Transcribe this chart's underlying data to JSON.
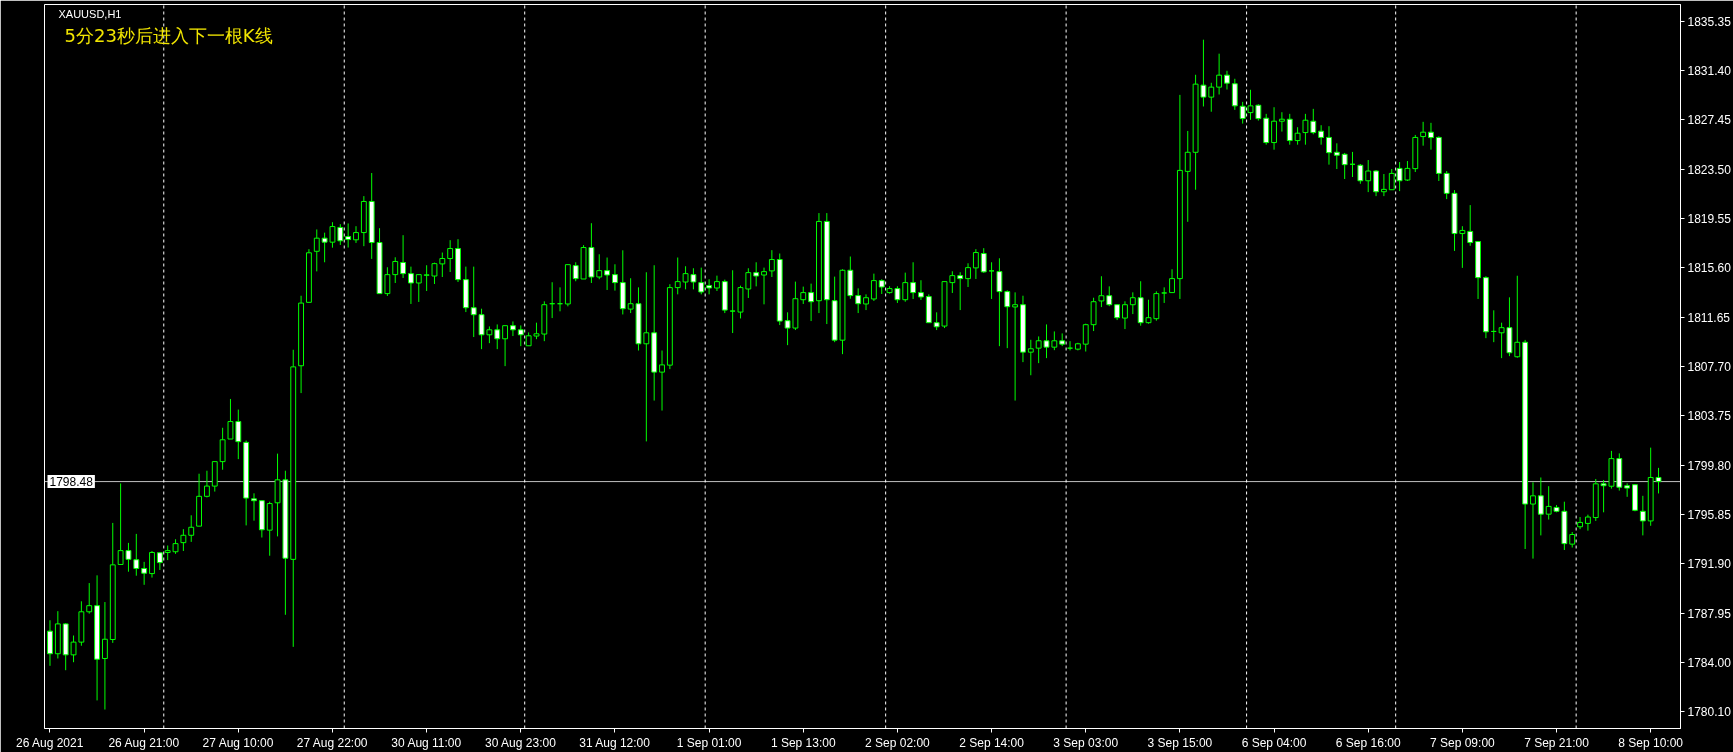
{
  "chart_data": {
    "type": "candlestick",
    "title": "XAUUSD,H1",
    "annotations": [
      "5分23秒后进入下一根K线"
    ],
    "color": "#00ff00",
    "categories": [
      "26 Aug 2021",
      null,
      null,
      null,
      null,
      null,
      null,
      null,
      null,
      null,
      null,
      null,
      "26 Aug 21:00",
      null,
      null,
      null,
      null,
      null,
      null,
      null,
      null,
      null,
      null,
      null,
      "27 Aug 10:00",
      null,
      null,
      null,
      null,
      null,
      null,
      null,
      null,
      null,
      null,
      null,
      "27 Aug 22:00",
      null,
      null,
      null,
      null,
      null,
      null,
      null,
      null,
      null,
      null,
      null,
      "30 Aug 11:00",
      null,
      null,
      null,
      null,
      null,
      null,
      null,
      null,
      null,
      null,
      null,
      "30 Aug 23:00",
      null,
      null,
      null,
      null,
      null,
      null,
      null,
      null,
      null,
      null,
      null,
      "31 Aug 12:00",
      null,
      null,
      null,
      null,
      null,
      null,
      null,
      null,
      null,
      null,
      null,
      "1 Sep 01:00",
      null,
      null,
      null,
      null,
      null,
      null,
      null,
      null,
      null,
      null,
      null,
      "1 Sep 13:00",
      null,
      null,
      null,
      null,
      null,
      null,
      null,
      null,
      null,
      null,
      null,
      "2 Sep 02:00",
      null,
      null,
      null,
      null,
      null,
      null,
      null,
      null,
      null,
      null,
      null,
      "2 Sep 14:00",
      null,
      null,
      null,
      null,
      null,
      null,
      null,
      null,
      null,
      null,
      null,
      "3 Sep 03:00",
      null,
      null,
      null,
      null,
      null,
      null,
      null,
      null,
      null,
      null,
      null,
      "3 Sep 15:00",
      null,
      null,
      null,
      null,
      null,
      null,
      null,
      null,
      null,
      null,
      null,
      "6 Sep 04:00",
      null,
      null,
      null,
      null,
      null,
      null,
      null,
      null,
      null,
      null,
      null,
      "6 Sep 16:00",
      null,
      null,
      null,
      null,
      null,
      null,
      null,
      null,
      null,
      null,
      null,
      "7 Sep 09:00",
      null,
      null,
      null,
      null,
      null,
      null,
      null,
      null,
      null,
      null,
      null,
      "7 Sep 21:00",
      null,
      null,
      null,
      null,
      null,
      null,
      null,
      null,
      null,
      null,
      null,
      "8 Sep 10:00",
      null
    ],
    "ohlc": [
      [
        1786.5,
        1787.37,
        1783.72,
        1784.69
      ],
      [
        1784.69,
        1788.1,
        1784.31,
        1787.08
      ],
      [
        1787.08,
        1787.14,
        1783.37,
        1784.6
      ],
      [
        1784.6,
        1786.15,
        1784.01,
        1785.62
      ],
      [
        1785.62,
        1788.89,
        1785.33,
        1788.05
      ],
      [
        1788.05,
        1790.35,
        1787.9,
        1788.54
      ],
      [
        1788.54,
        1790.97,
        1780.95,
        1784.25
      ],
      [
        1784.31,
        1788.83,
        1780.22,
        1785.85
      ],
      [
        1785.83,
        1795.17,
        1785.56,
        1791.81
      ],
      [
        1791.84,
        1798.33,
        1791.84,
        1792.95
      ],
      [
        1792.95,
        1793.57,
        1791.26,
        1792.25
      ],
      [
        1792.22,
        1794.29,
        1790.94,
        1791.52
      ],
      [
        1791.52,
        1792.05,
        1790.21,
        1791.14
      ],
      [
        1791.11,
        1792.92,
        1790.79,
        1792.8
      ],
      [
        1792.78,
        1792.8,
        1791.4,
        1791.99
      ],
      [
        1792.8,
        1793.36,
        1792.19,
        1792.95
      ],
      [
        1792.86,
        1793.86,
        1792.69,
        1793.51
      ],
      [
        1793.59,
        1794.67,
        1792.92,
        1794.18
      ],
      [
        1794.18,
        1795.78,
        1793.65,
        1794.82
      ],
      [
        1794.91,
        1799.11,
        1794.91,
        1797.3
      ],
      [
        1797.3,
        1799.35,
        1797.21,
        1798.12
      ],
      [
        1798.12,
        1800.08,
        1797.68,
        1800.08
      ],
      [
        1800.08,
        1802.79,
        1799.43,
        1801.83
      ],
      [
        1801.89,
        1805.1,
        1801.89,
        1803.29
      ],
      [
        1803.29,
        1804.25,
        1800.28,
        1801.68
      ],
      [
        1801.62,
        1801.77,
        1794.97,
        1797.16
      ],
      [
        1797.1,
        1797.54,
        1795.35,
        1796.95
      ],
      [
        1796.95,
        1796.95,
        1794.0,
        1794.62
      ],
      [
        1794.59,
        1796.87,
        1792.54,
        1796.72
      ],
      [
        1796.78,
        1800.72,
        1794.09,
        1798.62
      ],
      [
        1798.62,
        1799.35,
        1787.81,
        1792.34
      ],
      [
        1792.25,
        1809.04,
        1785.24,
        1807.67
      ],
      [
        1807.76,
        1813.37,
        1805.57,
        1812.78
      ],
      [
        1812.84,
        1817.1,
        1812.84,
        1816.81
      ],
      [
        1816.93,
        1818.68,
        1815.32,
        1817.98
      ],
      [
        1817.98,
        1818.42,
        1816.05,
        1817.66
      ],
      [
        1817.66,
        1819.26,
        1817.22,
        1818.91
      ],
      [
        1818.84,
        1819.1,
        1817.44,
        1817.77
      ],
      [
        1818.11,
        1819.16,
        1817.23,
        1817.87
      ],
      [
        1817.85,
        1818.94,
        1817.6,
        1818.43
      ],
      [
        1818.43,
        1821.35,
        1817.34,
        1820.92
      ],
      [
        1820.92,
        1823.2,
        1816.32,
        1817.63
      ],
      [
        1817.63,
        1818.78,
        1813.54,
        1813.54
      ],
      [
        1813.54,
        1815.65,
        1813.35,
        1815.06
      ],
      [
        1815.06,
        1816.45,
        1814.39,
        1816.11
      ],
      [
        1816.03,
        1818.22,
        1814.79,
        1815.14
      ],
      [
        1815.14,
        1815.7,
        1812.71,
        1814.39
      ],
      [
        1814.39,
        1815.06,
        1812.87,
        1815.06
      ],
      [
        1815.01,
        1815.81,
        1813.75,
        1815.04
      ],
      [
        1814.95,
        1816.02,
        1814.31,
        1815.94
      ],
      [
        1815.92,
        1816.83,
        1814.87,
        1816.35
      ],
      [
        1816.35,
        1817.82,
        1815.27,
        1817.15
      ],
      [
        1817.15,
        1817.9,
        1814.47,
        1814.66
      ],
      [
        1814.66,
        1815.7,
        1812.06,
        1812.41
      ],
      [
        1812.41,
        1815.7,
        1810.06,
        1811.85
      ],
      [
        1811.85,
        1812.33,
        1809.09,
        1810.24
      ],
      [
        1810.24,
        1810.91,
        1809.57,
        1810.64
      ],
      [
        1810.64,
        1811.07,
        1809.09,
        1809.92
      ],
      [
        1809.92,
        1810.97,
        1807.73,
        1810.97
      ],
      [
        1810.97,
        1811.31,
        1810.14,
        1810.64
      ],
      [
        1810.64,
        1810.99,
        1809.33,
        1810.24
      ],
      [
        1809.36,
        1810.43,
        1809.36,
        1810.16
      ],
      [
        1810.14,
        1811.21,
        1809.89,
        1810.32
      ],
      [
        1810.3,
        1812.92,
        1809.73,
        1812.65
      ],
      [
        1812.73,
        1814.45,
        1811.58,
        1812.73
      ],
      [
        1812.73,
        1814.04,
        1812.12,
        1812.73
      ],
      [
        1812.71,
        1815.86,
        1812.52,
        1815.86
      ],
      [
        1815.78,
        1816.05,
        1814.53,
        1814.74
      ],
      [
        1814.71,
        1817.42,
        1814.71,
        1817.23
      ],
      [
        1817.23,
        1819.18,
        1814.39,
        1814.87
      ],
      [
        1814.87,
        1816.69,
        1814.69,
        1815.38
      ],
      [
        1815.38,
        1816.43,
        1813.83,
        1815.03
      ],
      [
        1815.06,
        1815.89,
        1813.78,
        1814.42
      ],
      [
        1814.42,
        1817.01,
        1811.87,
        1812.33
      ],
      [
        1812.3,
        1814.77,
        1811.98,
        1812.73
      ],
      [
        1812.73,
        1814.04,
        1808.98,
        1809.52
      ],
      [
        1809.52,
        1815.25,
        1801.7,
        1810.4
      ],
      [
        1810.4,
        1815.81,
        1804.97,
        1807.25
      ],
      [
        1807.25,
        1808.98,
        1804.17,
        1807.83
      ],
      [
        1807.81,
        1814.29,
        1807.49,
        1814.02
      ],
      [
        1814.02,
        1816.43,
        1813.48,
        1814.5
      ],
      [
        1814.47,
        1815.73,
        1813.88,
        1815.14
      ],
      [
        1815.06,
        1815.57,
        1813.88,
        1814.47
      ],
      [
        1814.42,
        1815.62,
        1813.48,
        1813.67
      ],
      [
        1814.18,
        1814.69,
        1813.48,
        1813.99
      ],
      [
        1813.99,
        1814.98,
        1813.75,
        1814.5
      ],
      [
        1814.5,
        1814.66,
        1811.98,
        1812.22
      ],
      [
        1812.14,
        1815.41,
        1810.38,
        1812.14
      ],
      [
        1812.06,
        1814.18,
        1811.55,
        1814.02
      ],
      [
        1813.91,
        1815.57,
        1813.19,
        1815.22
      ],
      [
        1815.22,
        1816.05,
        1814.12,
        1814.95
      ],
      [
        1815.03,
        1815.62,
        1812.68,
        1815.3
      ],
      [
        1815.36,
        1817.02,
        1814.87,
        1816.27
      ],
      [
        1816.27,
        1816.75,
        1811.02,
        1811.34
      ],
      [
        1811.37,
        1812.04,
        1809.41,
        1810.78
      ],
      [
        1810.78,
        1814.5,
        1810.62,
        1813.13
      ],
      [
        1813.05,
        1814.1,
        1812.71,
        1813.62
      ],
      [
        1813.62,
        1814.34,
        1811.34,
        1812.89
      ],
      [
        1812.97,
        1819.99,
        1811.98,
        1819.32
      ],
      [
        1819.32,
        1819.99,
        1811.1,
        1813.05
      ],
      [
        1812.97,
        1814.9,
        1809.65,
        1809.81
      ],
      [
        1809.81,
        1815.49,
        1808.69,
        1815.41
      ],
      [
        1815.41,
        1816.51,
        1813.13,
        1813.38
      ],
      [
        1813.38,
        1813.96,
        1811.98,
        1812.73
      ],
      [
        1812.71,
        1813.48,
        1812.22,
        1813.21
      ],
      [
        1813.11,
        1815.14,
        1812.95,
        1814.58
      ],
      [
        1814.58,
        1814.69,
        1813.51,
        1814.07
      ],
      [
        1813.62,
        1814.13,
        1813.54,
        1813.94
      ],
      [
        1813.94,
        1814.13,
        1812.79,
        1813.05
      ],
      [
        1813.05,
        1815.22,
        1812.89,
        1814.42
      ],
      [
        1814.42,
        1816.05,
        1813.11,
        1813.62
      ],
      [
        1813.62,
        1814.61,
        1813.03,
        1813.27
      ],
      [
        1813.3,
        1813.48,
        1811.21,
        1811.21
      ],
      [
        1811.21,
        1812.04,
        1810.62,
        1810.88
      ],
      [
        1810.94,
        1814.5,
        1810.78,
        1814.5
      ],
      [
        1814.42,
        1815.33,
        1813.59,
        1814.98
      ],
      [
        1814.98,
        1815.25,
        1812.22,
        1814.74
      ],
      [
        1814.74,
        1815.97,
        1814.07,
        1815.62
      ],
      [
        1815.6,
        1817.1,
        1814.71,
        1816.83
      ],
      [
        1816.75,
        1817.18,
        1815.2,
        1815.28
      ],
      [
        1815.36,
        1816.05,
        1813.11,
        1815.36
      ],
      [
        1815.3,
        1816.37,
        1809.33,
        1813.7
      ],
      [
        1813.7,
        1813.8,
        1809.17,
        1812.49
      ],
      [
        1812.47,
        1813.64,
        1804.97,
        1812.65
      ],
      [
        1812.65,
        1813.37,
        1808.05,
        1808.85
      ],
      [
        1808.85,
        1809.84,
        1807.0,
        1809.12
      ],
      [
        1809.17,
        1810.11,
        1807.97,
        1809.76
      ],
      [
        1809.76,
        1811.07,
        1808.37,
        1809.25
      ],
      [
        1809.25,
        1810.51,
        1809.01,
        1809.76
      ],
      [
        1809.76,
        1810.35,
        1809.33,
        1809.49
      ],
      [
        1809.17,
        1809.73,
        1808.99,
        1809.17
      ],
      [
        1809.09,
        1809.6,
        1808.99,
        1809.52
      ],
      [
        1809.49,
        1811.13,
        1808.9,
        1811.05
      ],
      [
        1811.05,
        1813.21,
        1810.54,
        1812.89
      ],
      [
        1812.95,
        1814.93,
        1812.46,
        1813.37
      ],
      [
        1813.37,
        1814.12,
        1812.53,
        1812.65
      ],
      [
        1812.65,
        1812.65,
        1811.42,
        1811.61
      ],
      [
        1811.58,
        1812.92,
        1810.7,
        1812.65
      ],
      [
        1812.65,
        1813.64,
        1811.9,
        1813.21
      ],
      [
        1813.21,
        1814.53,
        1810.97,
        1811.21
      ],
      [
        1811.21,
        1813.05,
        1811.13,
        1811.61
      ],
      [
        1811.53,
        1813.72,
        1811.37,
        1813.54
      ],
      [
        1813.59,
        1814.04,
        1812.79,
        1813.59
      ],
      [
        1813.62,
        1815.49,
        1813.62,
        1814.74
      ],
      [
        1814.74,
        1829.46,
        1813.11,
        1823.41
      ],
      [
        1823.33,
        1826.57,
        1819.29,
        1824.86
      ],
      [
        1824.86,
        1831.07,
        1821.86,
        1830.32
      ],
      [
        1830.24,
        1833.88,
        1828.53,
        1829.28
      ],
      [
        1829.28,
        1830.43,
        1828.11,
        1830.08
      ],
      [
        1830.08,
        1832.76,
        1829.49,
        1831.04
      ],
      [
        1831.04,
        1831.39,
        1829.89,
        1830.4
      ],
      [
        1830.35,
        1830.75,
        1828.26,
        1828.58
      ],
      [
        1828.55,
        1828.9,
        1827.16,
        1827.56
      ],
      [
        1828.04,
        1829.87,
        1827.46,
        1828.58
      ],
      [
        1828.63,
        1828.71,
        1827.4,
        1827.56
      ],
      [
        1827.59,
        1827.94,
        1825.47,
        1825.64
      ],
      [
        1825.64,
        1828.47,
        1825.07,
        1827.35
      ],
      [
        1827.35,
        1828.07,
        1826.52,
        1827.51
      ],
      [
        1827.51,
        1827.94,
        1825.47,
        1825.8
      ],
      [
        1825.8,
        1826.87,
        1825.47,
        1826.39
      ],
      [
        1826.44,
        1827.94,
        1825.47,
        1827.43
      ],
      [
        1827.35,
        1828.34,
        1826.3,
        1826.44
      ],
      [
        1826.55,
        1827.03,
        1825.47,
        1826.05
      ],
      [
        1826.05,
        1826.95,
        1823.87,
        1824.83
      ],
      [
        1824.86,
        1825.58,
        1823.52,
        1824.62
      ],
      [
        1824.7,
        1824.81,
        1822.72,
        1823.87
      ],
      [
        1823.9,
        1824.89,
        1822.88,
        1823.9
      ],
      [
        1823.82,
        1823.92,
        1822.34,
        1822.58
      ],
      [
        1822.58,
        1824.24,
        1821.67,
        1823.36
      ],
      [
        1823.36,
        1823.44,
        1821.35,
        1821.7
      ],
      [
        1821.7,
        1823.12,
        1821.35,
        1821.89
      ],
      [
        1821.86,
        1823.52,
        1821.86,
        1823.17
      ],
      [
        1823.57,
        1824.08,
        1821.75,
        1822.58
      ],
      [
        1822.64,
        1824.16,
        1822.56,
        1823.57
      ],
      [
        1823.55,
        1826.25,
        1823.28,
        1826.05
      ],
      [
        1826.12,
        1827.3,
        1825.39,
        1826.47
      ],
      [
        1826.47,
        1827.22,
        1825.07,
        1826.04
      ],
      [
        1826.05,
        1826.14,
        1822.56,
        1823.17
      ],
      [
        1823.17,
        1823.36,
        1821.11,
        1821.57
      ],
      [
        1821.57,
        1821.83,
        1816.96,
        1818.35
      ],
      [
        1818.35,
        1818.94,
        1815.6,
        1818.6
      ],
      [
        1818.52,
        1820.63,
        1817.37,
        1817.63
      ],
      [
        1817.71,
        1817.71,
        1813.11,
        1814.82
      ],
      [
        1814.82,
        1814.93,
        1809.97,
        1810.48
      ],
      [
        1810.51,
        1812.2,
        1809.65,
        1810.51
      ],
      [
        1810.4,
        1811.21,
        1808.37,
        1810.81
      ],
      [
        1810.81,
        1813.24,
        1808.53,
        1808.8
      ],
      [
        1808.48,
        1814.97,
        1808.4,
        1809.64
      ],
      [
        1809.64,
        1809.83,
        1793.08,
        1796.68
      ],
      [
        1796.68,
        1798.42,
        1792.31,
        1797.34
      ],
      [
        1797.34,
        1798.81,
        1794.17,
        1795.87
      ],
      [
        1795.87,
        1798.11,
        1795.44,
        1796.49
      ],
      [
        1796.41,
        1796.6,
        1796.02,
        1796.1
      ],
      [
        1796.1,
        1796.87,
        1793.0,
        1793.51
      ],
      [
        1793.47,
        1794.44,
        1793.2,
        1794.24
      ],
      [
        1794.86,
        1795.64,
        1794.67,
        1795.21
      ],
      [
        1795.13,
        1795.83,
        1794.55,
        1795.64
      ],
      [
        1795.6,
        1798.69,
        1795.33,
        1798.3
      ],
      [
        1798.3,
        1798.61,
        1796.02,
        1798.15
      ],
      [
        1798.11,
        1800.94,
        1797.92,
        1800.32
      ],
      [
        1800.32,
        1800.74,
        1797.76,
        1798.03
      ],
      [
        1798.15,
        1798.34,
        1797.26,
        1797.96
      ],
      [
        1798.23,
        1798.23,
        1796.1,
        1796.18
      ],
      [
        1796.1,
        1797.34,
        1794.17,
        1795.33
      ],
      [
        1795.33,
        1801.2,
        1794.94,
        1798.81
      ],
      [
        1798.81,
        1799.58,
        1797.53,
        1798.48
      ]
    ],
    "ylim": [
      1778.7,
      1836.7
    ],
    "yticks": [
      {
        "value": 1780.1,
        "label": "1780.10"
      },
      {
        "value": 1784.0,
        "label": "1784.00"
      },
      {
        "value": 1787.95,
        "label": "1787.95"
      },
      {
        "value": 1791.9,
        "label": "1791.90"
      },
      {
        "value": 1795.85,
        "label": "1795.85"
      },
      {
        "value": 1799.8,
        "label": "1799.80"
      },
      {
        "value": 1803.75,
        "label": "1803.75"
      },
      {
        "value": 1807.7,
        "label": "1807.70"
      },
      {
        "value": 1811.65,
        "label": "1811.65"
      },
      {
        "value": 1815.6,
        "label": "1815.60"
      },
      {
        "value": 1819.55,
        "label": "1819.55"
      },
      {
        "value": 1823.5,
        "label": "1823.50"
      },
      {
        "value": 1827.45,
        "label": "1827.45"
      },
      {
        "value": 1831.4,
        "label": "1831.40"
      },
      {
        "value": 1835.35,
        "label": "1835.35"
      }
    ],
    "ref_lines": [
      {
        "axis": "y",
        "value": 1798.48,
        "label": "1798.48",
        "color": "#c0c0c0",
        "line_style": "solid"
      }
    ]
  }
}
